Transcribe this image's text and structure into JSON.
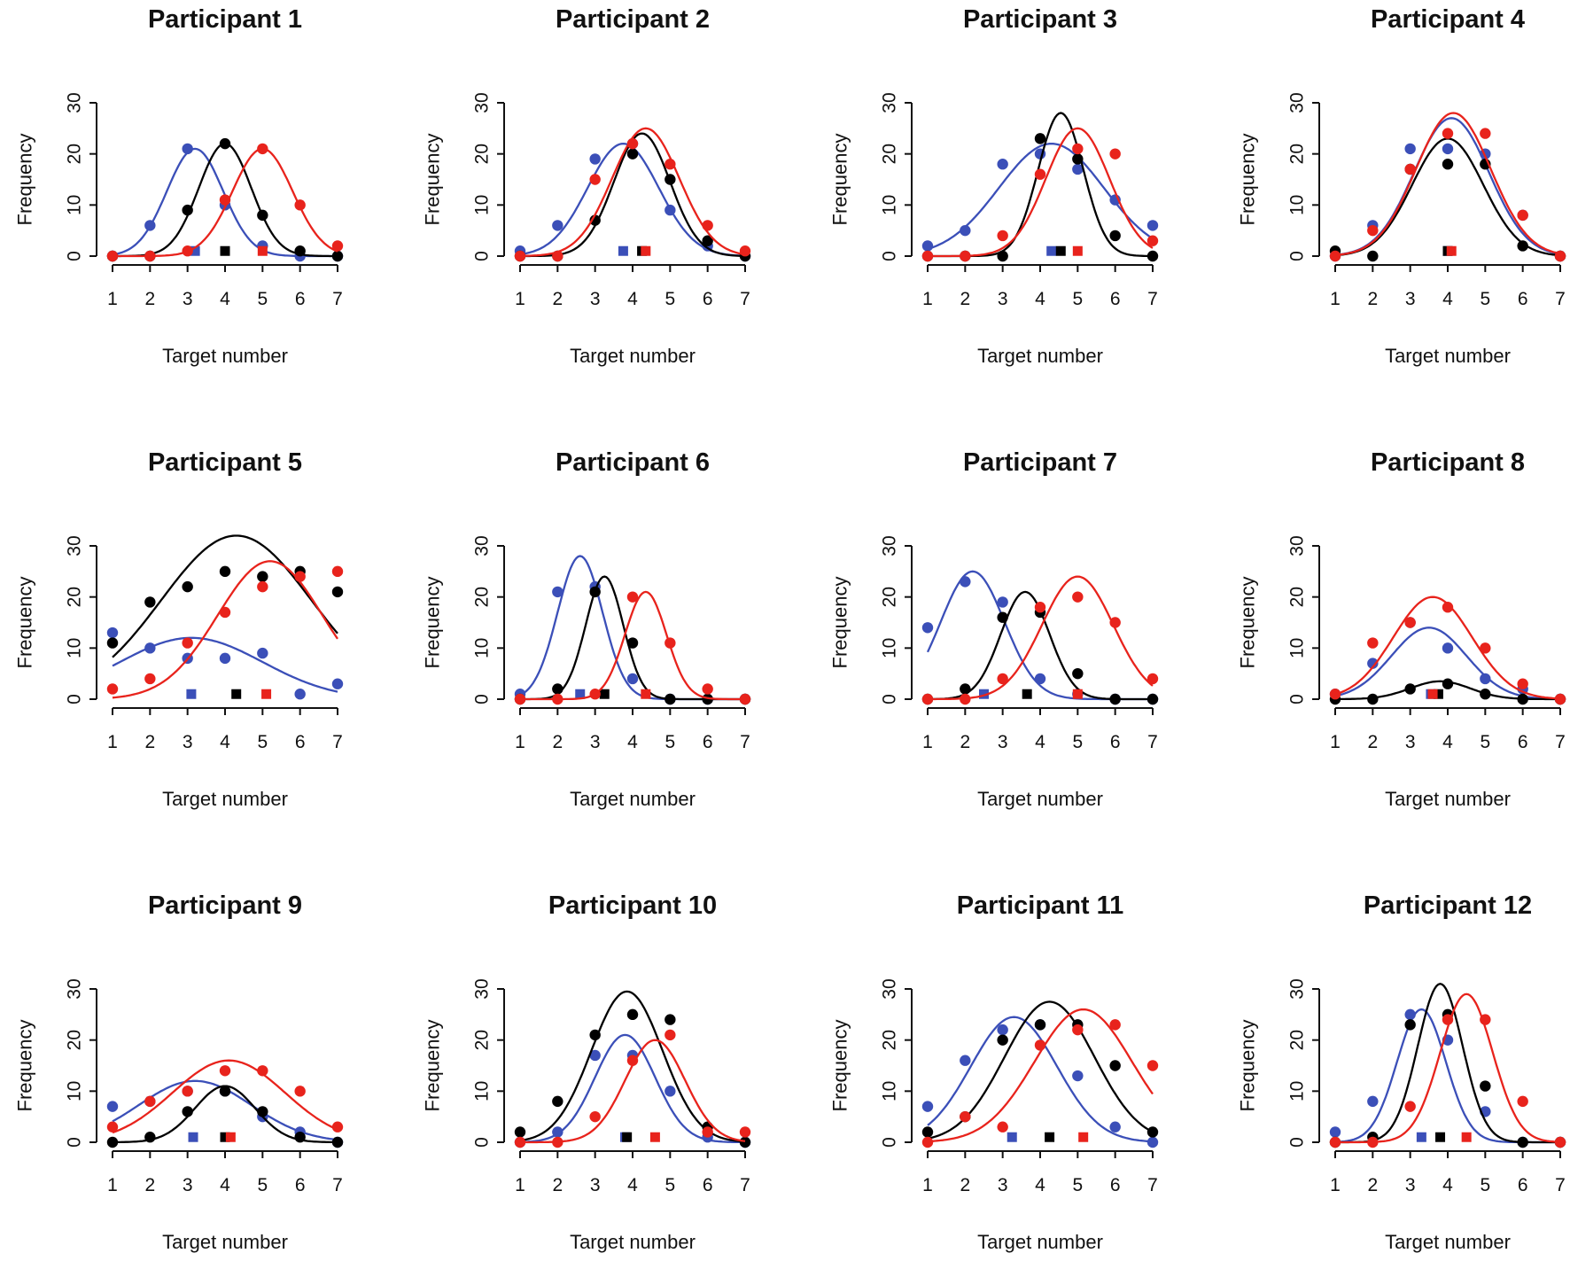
{
  "chart_data": [
    {
      "type": "scatter",
      "title": "Participant 1",
      "xlabel": "Target number",
      "ylabel": "Frequency",
      "x": [
        1,
        2,
        3,
        4,
        5,
        6,
        7
      ],
      "xticks": [
        1,
        2,
        3,
        4,
        5,
        6,
        7
      ],
      "yticks": [
        0,
        10,
        20,
        30
      ],
      "xlim": [
        1,
        7
      ],
      "ylim": [
        0,
        30
      ],
      "colors": {
        "blue": "#3b4fb8",
        "black": "#000000",
        "red": "#e8231c"
      },
      "series": [
        {
          "name": "blue",
          "values": [
            0,
            6,
            21,
            10,
            2,
            0,
            0
          ],
          "curve": {
            "peak": 21,
            "mean": 3.2,
            "sd": 0.75
          },
          "marker": 3.2
        },
        {
          "name": "black",
          "values": [
            0,
            0,
            9,
            22,
            8,
            1,
            0
          ],
          "curve": {
            "peak": 22,
            "mean": 4.0,
            "sd": 0.7
          },
          "marker": 4.0
        },
        {
          "name": "red",
          "values": [
            0,
            0,
            1,
            11,
            21,
            10,
            2
          ],
          "curve": {
            "peak": 21,
            "mean": 5.0,
            "sd": 0.8
          },
          "marker": 5.0
        }
      ]
    },
    {
      "type": "scatter",
      "title": "Participant 2",
      "xlabel": "Target number",
      "ylabel": "Frequency",
      "x": [
        1,
        2,
        3,
        4,
        5,
        6,
        7
      ],
      "xticks": [
        1,
        2,
        3,
        4,
        5,
        6,
        7
      ],
      "yticks": [
        0,
        10,
        20,
        30
      ],
      "xlim": [
        1,
        7
      ],
      "ylim": [
        0,
        30
      ],
      "colors": {
        "blue": "#3b4fb8",
        "black": "#000000",
        "red": "#e8231c"
      },
      "series": [
        {
          "name": "blue",
          "values": [
            1,
            6,
            19,
            22,
            9,
            2,
            0
          ],
          "curve": {
            "peak": 22,
            "mean": 3.75,
            "sd": 0.95
          },
          "marker": 3.75
        },
        {
          "name": "black",
          "values": [
            0,
            0,
            7,
            20,
            15,
            3,
            0
          ],
          "curve": {
            "peak": 24,
            "mean": 4.25,
            "sd": 0.75
          },
          "marker": 4.25
        },
        {
          "name": "red",
          "values": [
            0,
            0,
            15,
            22,
            18,
            6,
            1
          ],
          "curve": {
            "peak": 25,
            "mean": 4.35,
            "sd": 0.9
          },
          "marker": 4.35
        }
      ]
    },
    {
      "type": "scatter",
      "title": "Participant 3",
      "xlabel": "Target number",
      "ylabel": "Frequency",
      "x": [
        1,
        2,
        3,
        4,
        5,
        6,
        7
      ],
      "xticks": [
        1,
        2,
        3,
        4,
        5,
        6,
        7
      ],
      "yticks": [
        0,
        10,
        20,
        30
      ],
      "xlim": [
        1,
        7
      ],
      "ylim": [
        0,
        30
      ],
      "colors": {
        "blue": "#3b4fb8",
        "black": "#000000",
        "red": "#e8231c"
      },
      "series": [
        {
          "name": "blue",
          "values": [
            2,
            5,
            18,
            20,
            17,
            11,
            6
          ],
          "curve": {
            "peak": 22,
            "mean": 4.3,
            "sd": 1.4
          },
          "marker": 4.3
        },
        {
          "name": "black",
          "values": [
            0,
            0,
            0,
            23,
            19,
            4,
            0
          ],
          "curve": {
            "peak": 28,
            "mean": 4.55,
            "sd": 0.6
          },
          "marker": 4.55
        },
        {
          "name": "red",
          "values": [
            0,
            0,
            4,
            16,
            21,
            20,
            3
          ],
          "curve": {
            "peak": 25,
            "mean": 5.0,
            "sd": 0.85
          },
          "marker": 5.0
        }
      ]
    },
    {
      "type": "scatter",
      "title": "Participant 4",
      "xlabel": "Target number",
      "ylabel": "Frequency",
      "x": [
        1,
        2,
        3,
        4,
        5,
        6,
        7
      ],
      "xticks": [
        1,
        2,
        3,
        4,
        5,
        6,
        7
      ],
      "yticks": [
        0,
        10,
        20,
        30
      ],
      "xlim": [
        1,
        7
      ],
      "ylim": [
        0,
        30
      ],
      "colors": {
        "blue": "#3b4fb8",
        "black": "#000000",
        "red": "#e8231c"
      },
      "series": [
        {
          "name": "blue",
          "values": [
            0,
            6,
            21,
            21,
            20,
            8,
            0
          ],
          "curve": {
            "peak": 27,
            "mean": 4.1,
            "sd": 1.0
          },
          "marker": 4.0
        },
        {
          "name": "black",
          "values": [
            1,
            0,
            17,
            18,
            18,
            2,
            0
          ],
          "curve": {
            "peak": 23,
            "mean": 4.0,
            "sd": 0.95
          },
          "marker": 4.0
        },
        {
          "name": "red",
          "values": [
            0,
            5,
            17,
            24,
            24,
            8,
            0
          ],
          "curve": {
            "peak": 28,
            "mean": 4.15,
            "sd": 1.0
          },
          "marker": 4.1
        }
      ]
    },
    {
      "type": "scatter",
      "title": "Participant 5",
      "xlabel": "Target number",
      "ylabel": "Frequency",
      "x": [
        1,
        2,
        3,
        4,
        5,
        6,
        7
      ],
      "xticks": [
        1,
        2,
        3,
        4,
        5,
        6,
        7
      ],
      "yticks": [
        0,
        10,
        20,
        30
      ],
      "xlim": [
        1,
        7
      ],
      "ylim": [
        0,
        30
      ],
      "colors": {
        "blue": "#3b4fb8",
        "black": "#000000",
        "red": "#e8231c"
      },
      "series": [
        {
          "name": "blue",
          "values": [
            13,
            10,
            8,
            8,
            9,
            1,
            3
          ],
          "curve": {
            "peak": 12,
            "mean": 3.1,
            "sd": 1.9
          },
          "marker": 3.1
        },
        {
          "name": "black",
          "values": [
            11,
            19,
            22,
            25,
            24,
            25,
            21
          ],
          "curve": {
            "peak": 32,
            "mean": 4.3,
            "sd": 2.0
          },
          "marker": 4.3
        },
        {
          "name": "red",
          "values": [
            2,
            4,
            11,
            17,
            22,
            24,
            25
          ],
          "curve": {
            "peak": 27,
            "mean": 5.2,
            "sd": 1.4
          },
          "marker": 5.1
        }
      ]
    },
    {
      "type": "scatter",
      "title": "Participant 6",
      "xlabel": "Target number",
      "ylabel": "Frequency",
      "x": [
        1,
        2,
        3,
        4,
        5,
        6,
        7
      ],
      "xticks": [
        1,
        2,
        3,
        4,
        5,
        6,
        7
      ],
      "yticks": [
        0,
        10,
        20,
        30
      ],
      "xlim": [
        1,
        7
      ],
      "ylim": [
        0,
        30
      ],
      "colors": {
        "blue": "#3b4fb8",
        "black": "#000000",
        "red": "#e8231c"
      },
      "series": [
        {
          "name": "blue",
          "values": [
            1,
            21,
            22,
            4,
            0,
            0,
            0
          ],
          "curve": {
            "peak": 28,
            "mean": 2.6,
            "sd": 0.6
          },
          "marker": 2.6
        },
        {
          "name": "black",
          "values": [
            0,
            2,
            21,
            11,
            0,
            0,
            0
          ],
          "curve": {
            "peak": 24,
            "mean": 3.25,
            "sd": 0.5
          },
          "marker": 3.25
        },
        {
          "name": "red",
          "values": [
            0,
            0,
            1,
            20,
            11,
            2,
            0
          ],
          "curve": {
            "peak": 21,
            "mean": 4.35,
            "sd": 0.55
          },
          "marker": 4.35
        }
      ]
    },
    {
      "type": "scatter",
      "title": "Participant 7",
      "xlabel": "Target number",
      "ylabel": "Frequency",
      "x": [
        1,
        2,
        3,
        4,
        5,
        6,
        7
      ],
      "xticks": [
        1,
        2,
        3,
        4,
        5,
        6,
        7
      ],
      "yticks": [
        0,
        10,
        20,
        30
      ],
      "xlim": [
        1,
        7
      ],
      "ylim": [
        0,
        30
      ],
      "colors": {
        "blue": "#3b4fb8",
        "black": "#000000",
        "red": "#e8231c"
      },
      "series": [
        {
          "name": "blue",
          "values": [
            14,
            23,
            19,
            4,
            1,
            0,
            0
          ],
          "curve": {
            "peak": 25,
            "mean": 2.2,
            "sd": 0.85
          },
          "marker": 2.5
        },
        {
          "name": "black",
          "values": [
            0,
            2,
            16,
            17,
            5,
            0,
            0
          ],
          "curve": {
            "peak": 21,
            "mean": 3.6,
            "sd": 0.65
          },
          "marker": 3.65
        },
        {
          "name": "red",
          "values": [
            0,
            0,
            4,
            18,
            20,
            15,
            4
          ],
          "curve": {
            "peak": 24,
            "mean": 5.0,
            "sd": 0.95
          },
          "marker": 5.0
        }
      ]
    },
    {
      "type": "scatter",
      "title": "Participant 8",
      "xlabel": "Target number",
      "ylabel": "Frequency",
      "x": [
        1,
        2,
        3,
        4,
        5,
        6,
        7
      ],
      "xticks": [
        1,
        2,
        3,
        4,
        5,
        6,
        7
      ],
      "yticks": [
        0,
        10,
        20,
        30
      ],
      "xlim": [
        1,
        7
      ],
      "ylim": [
        0,
        30
      ],
      "colors": {
        "blue": "#3b4fb8",
        "black": "#000000",
        "red": "#e8231c"
      },
      "series": [
        {
          "name": "blue",
          "values": [
            1,
            7,
            15,
            10,
            4,
            2,
            0
          ],
          "curve": {
            "peak": 14,
            "mean": 3.5,
            "sd": 1.0
          },
          "marker": 3.55
        },
        {
          "name": "black",
          "values": [
            0,
            0,
            2,
            3,
            1,
            0,
            0
          ],
          "curve": {
            "peak": 3.5,
            "mean": 3.8,
            "sd": 0.8
          },
          "marker": 3.75
        },
        {
          "name": "red",
          "values": [
            1,
            11,
            15,
            18,
            10,
            3,
            0
          ],
          "curve": {
            "peak": 20,
            "mean": 3.6,
            "sd": 1.05
          },
          "marker": 3.6
        }
      ]
    },
    {
      "type": "scatter",
      "title": "Participant 9",
      "xlabel": "Target number",
      "ylabel": "Frequency",
      "x": [
        1,
        2,
        3,
        4,
        5,
        6,
        7
      ],
      "xticks": [
        1,
        2,
        3,
        4,
        5,
        6,
        7
      ],
      "yticks": [
        0,
        10,
        20,
        30
      ],
      "xlim": [
        1,
        7
      ],
      "ylim": [
        0,
        30
      ],
      "colors": {
        "blue": "#3b4fb8",
        "black": "#000000",
        "red": "#e8231c"
      },
      "series": [
        {
          "name": "blue",
          "values": [
            7,
            8,
            10,
            10,
            5,
            2,
            0
          ],
          "curve": {
            "peak": 12,
            "mean": 3.2,
            "sd": 1.5
          },
          "marker": 3.15
        },
        {
          "name": "black",
          "values": [
            0,
            1,
            6,
            10,
            6,
            1,
            0
          ],
          "curve": {
            "peak": 11,
            "mean": 4.0,
            "sd": 0.8
          },
          "marker": 4.0
        },
        {
          "name": "red",
          "values": [
            3,
            8,
            10,
            14,
            14,
            10,
            3
          ],
          "curve": {
            "peak": 16,
            "mean": 4.1,
            "sd": 1.5
          },
          "marker": 4.15
        }
      ]
    },
    {
      "type": "scatter",
      "title": "Participant 10",
      "xlabel": "Target number",
      "ylabel": "Frequency",
      "x": [
        1,
        2,
        3,
        4,
        5,
        6,
        7
      ],
      "xticks": [
        1,
        2,
        3,
        4,
        5,
        6,
        7
      ],
      "yticks": [
        0,
        10,
        20,
        30
      ],
      "xlim": [
        1,
        7
      ],
      "ylim": [
        0,
        30
      ],
      "colors": {
        "blue": "#3b4fb8",
        "black": "#000000",
        "red": "#e8231c"
      },
      "series": [
        {
          "name": "blue",
          "values": [
            0,
            2,
            17,
            17,
            10,
            1,
            0
          ],
          "curve": {
            "peak": 21,
            "mean": 3.8,
            "sd": 0.8
          },
          "marker": 3.8
        },
        {
          "name": "black",
          "values": [
            2,
            8,
            21,
            25,
            24,
            3,
            0
          ],
          "curve": {
            "peak": 29.5,
            "mean": 3.85,
            "sd": 0.95
          },
          "marker": 3.85
        },
        {
          "name": "red",
          "values": [
            0,
            0,
            5,
            16,
            21,
            2,
            2
          ],
          "curve": {
            "peak": 20,
            "mean": 4.6,
            "sd": 0.8
          },
          "marker": 4.6
        }
      ]
    },
    {
      "type": "scatter",
      "title": "Participant 11",
      "xlabel": "Target number",
      "ylabel": "Frequency",
      "x": [
        1,
        2,
        3,
        4,
        5,
        6,
        7
      ],
      "xticks": [
        1,
        2,
        3,
        4,
        5,
        6,
        7
      ],
      "yticks": [
        0,
        10,
        20,
        30
      ],
      "xlim": [
        1,
        7
      ],
      "ylim": [
        0,
        30
      ],
      "colors": {
        "blue": "#3b4fb8",
        "black": "#000000",
        "red": "#e8231c"
      },
      "series": [
        {
          "name": "blue",
          "values": [
            7,
            16,
            22,
            23,
            13,
            3,
            0
          ],
          "curve": {
            "peak": 24.5,
            "mean": 3.3,
            "sd": 1.15
          },
          "marker": 3.25
        },
        {
          "name": "black",
          "values": [
            2,
            5,
            20,
            23,
            23,
            15,
            2
          ],
          "curve": {
            "peak": 27.5,
            "mean": 4.25,
            "sd": 1.2
          },
          "marker": 4.25
        },
        {
          "name": "red",
          "values": [
            0,
            5,
            3,
            19,
            22,
            23,
            15
          ],
          "curve": {
            "peak": 26,
            "mean": 5.15,
            "sd": 1.3
          },
          "marker": 5.15
        }
      ]
    },
    {
      "type": "scatter",
      "title": "Participant 12",
      "xlabel": "Target number",
      "ylabel": "Frequency",
      "x": [
        1,
        2,
        3,
        4,
        5,
        6,
        7
      ],
      "xticks": [
        1,
        2,
        3,
        4,
        5,
        6,
        7
      ],
      "yticks": [
        0,
        10,
        20,
        30
      ],
      "xlim": [
        1,
        7
      ],
      "ylim": [
        0,
        30
      ],
      "colors": {
        "blue": "#3b4fb8",
        "black": "#000000",
        "red": "#e8231c"
      },
      "series": [
        {
          "name": "blue",
          "values": [
            2,
            8,
            25,
            20,
            6,
            0,
            0
          ],
          "curve": {
            "peak": 26,
            "mean": 3.3,
            "sd": 0.65
          },
          "marker": 3.3
        },
        {
          "name": "black",
          "values": [
            0,
            1,
            23,
            25,
            11,
            0,
            0
          ],
          "curve": {
            "peak": 31,
            "mean": 3.8,
            "sd": 0.6
          },
          "marker": 3.8
        },
        {
          "name": "red",
          "values": [
            0,
            0,
            7,
            24,
            24,
            8,
            0
          ],
          "curve": {
            "peak": 29,
            "mean": 4.5,
            "sd": 0.7
          },
          "marker": 4.5
        }
      ]
    }
  ]
}
